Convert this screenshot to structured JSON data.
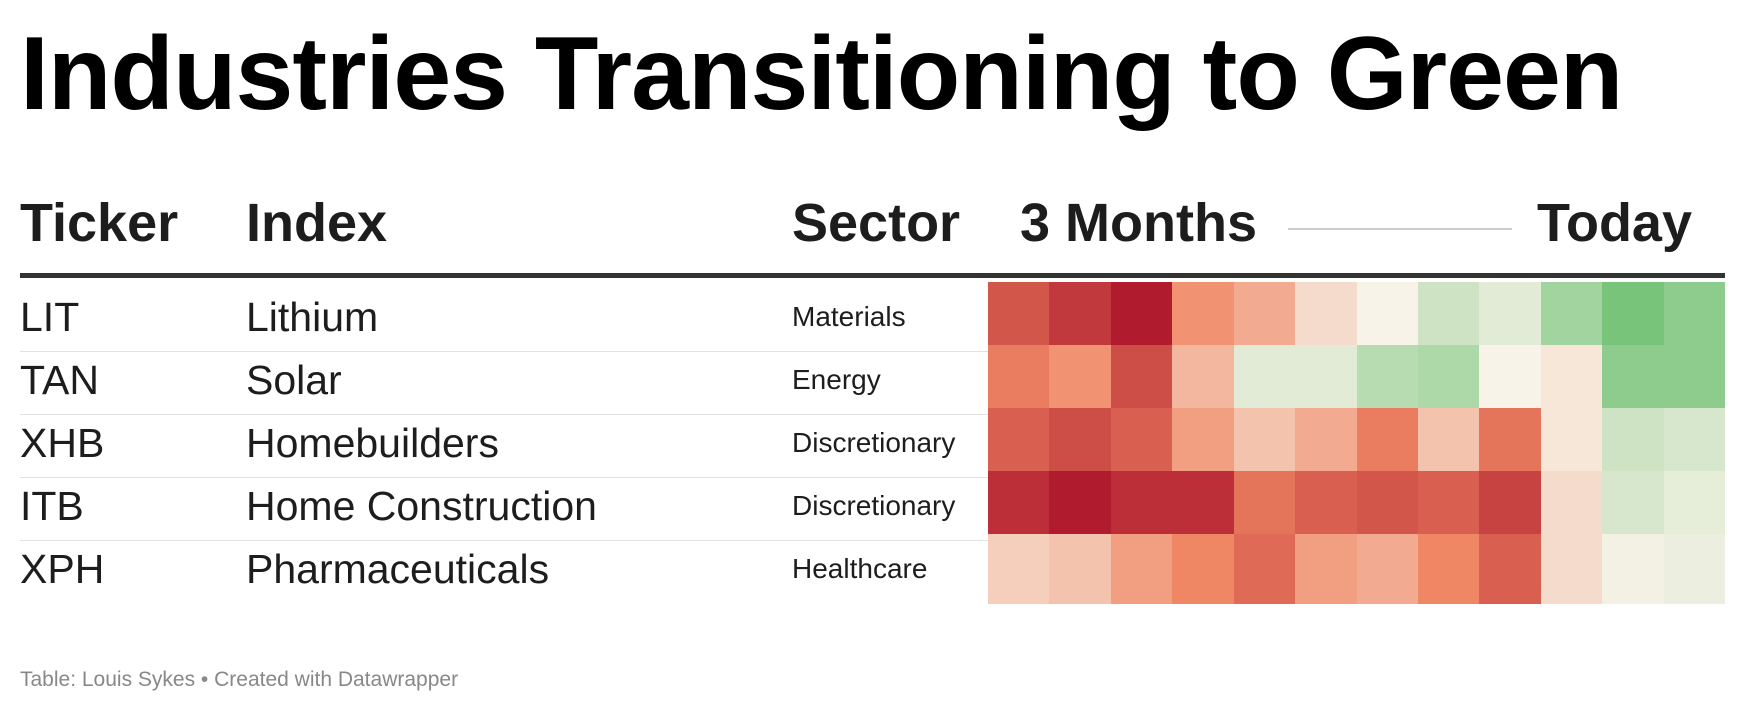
{
  "title": "Industries Transitioning to Green",
  "columns": {
    "ticker": "Ticker",
    "index": "Index",
    "sector": "Sector",
    "period_from": "3 Months",
    "period_to": "Today"
  },
  "colors": {
    "strong_red": "#b01c2e",
    "strong_green": "#78c47a",
    "neutral": "#f7f3e8",
    "header_rule": "#333333",
    "source_text": "#888888"
  },
  "chart_data": {
    "type": "heatmap",
    "title": "Industries Transitioning to Green",
    "columns": [
      "Ticker",
      "Index",
      "Sector"
    ],
    "period_labels": [
      "3 Months",
      "Today"
    ],
    "intervals_per_row": 12,
    "scale": "relative change: negative = red, positive = green (unit not shown)",
    "rows": [
      {
        "ticker": "LIT",
        "index": "Lithium",
        "sector": "Materials",
        "values": [
          -7,
          -8.5,
          -10,
          -4,
          -3,
          -1,
          0,
          2,
          1,
          4,
          6,
          5
        ]
      },
      {
        "ticker": "TAN",
        "index": "Solar",
        "sector": "Energy",
        "values": [
          -5,
          -4,
          -7.5,
          -2.5,
          1,
          1,
          3,
          3.5,
          0,
          -0.5,
          5,
          5
        ]
      },
      {
        "ticker": "XHB",
        "index": "Homebuilders",
        "sector": "Discretionary",
        "values": [
          -6.5,
          -7.5,
          -6.5,
          -3.5,
          -2,
          -3,
          -5,
          -2,
          -5.5,
          -0.5,
          2,
          1.5
        ]
      },
      {
        "ticker": "ITB",
        "index": "Home Construction",
        "sector": "Discretionary",
        "values": [
          -9,
          -10,
          -9,
          -9,
          -5.5,
          -6.5,
          -7,
          -6.5,
          -8,
          -1,
          1.5,
          0.8
        ]
      },
      {
        "ticker": "XPH",
        "index": "Pharmaceuticals",
        "sector": "Healthcare",
        "values": [
          -1.5,
          -2,
          -3.5,
          -4.5,
          -6,
          -3.5,
          -3,
          -4.5,
          -6.5,
          -1,
          0.2,
          0.5
        ]
      }
    ]
  },
  "source": "Table: Louis Sykes • Created with Datawrapper"
}
